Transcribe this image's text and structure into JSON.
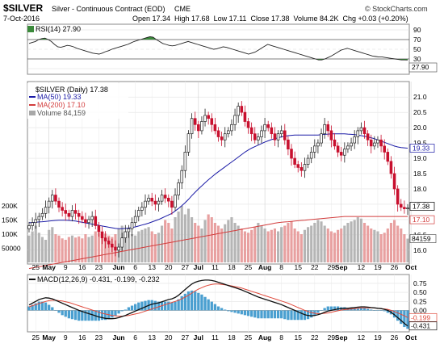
{
  "header": {
    "symbol": "$SILVER",
    "description": "Silver - Continuous Contract (EOD)",
    "exchange": "CME",
    "watermark": "© StockCharts.com",
    "date": "7-Oct-2016",
    "quote_line": "Open 17.34  High 17.68  Low 17.11  Close 17.38  Volume 84.2K  Chg +0.03 (+0.20%)"
  },
  "chart_data": [
    {
      "panel": "rsi",
      "type": "line",
      "legend": "RSI(14) 27.90",
      "ylim": [
        0,
        100
      ],
      "ticks": [
        10,
        30,
        50,
        70,
        90
      ],
      "reference_lines": [
        30,
        70
      ],
      "last_value_label": "27.90",
      "values": [
        62,
        64,
        66,
        70,
        72,
        73,
        70,
        66,
        60,
        55,
        54,
        56,
        58,
        57,
        55,
        52,
        50,
        48,
        46,
        44,
        42,
        41,
        40,
        42,
        45,
        47,
        50,
        52,
        54,
        56,
        58,
        60,
        63,
        66,
        68,
        70,
        72,
        74,
        76,
        75,
        70,
        66,
        62,
        60,
        58,
        57,
        58,
        60,
        62,
        64,
        66,
        64,
        62,
        60,
        58,
        56,
        54,
        52,
        50,
        51,
        53,
        55,
        54,
        52,
        50,
        48,
        46,
        44,
        42,
        40,
        42,
        44,
        48,
        52,
        56,
        60,
        58,
        56,
        54,
        52,
        50,
        48,
        46,
        44,
        42,
        40,
        38,
        36,
        34,
        32,
        30,
        28,
        28,
        30,
        33,
        36,
        40,
        44,
        48,
        50,
        52,
        50,
        48,
        46,
        44,
        42,
        40,
        38,
        36,
        35,
        34,
        34,
        33,
        32,
        31,
        30,
        29,
        28,
        28,
        27.9
      ]
    },
    {
      "panel": "price",
      "type": "candlestick",
      "legend_title": "$SILVER (Daily) 17.38",
      "series": [
        {
          "name": "MA(50) 19.33",
          "color": "#1a1aa6"
        },
        {
          "name": "MA(200) 17.10",
          "color": "#d23c3c"
        },
        {
          "name": "Volume 84,159",
          "color": "#a8a8a8"
        }
      ],
      "ylim": [
        15.6,
        21.4
      ],
      "y_ticks": [
        16.0,
        16.5,
        17.0,
        17.5,
        18.0,
        18.5,
        19.0,
        19.5,
        20.0,
        20.5,
        21.0
      ],
      "price_markers": [
        "19.33",
        "17.38",
        "17.10"
      ],
      "volume_ticks": [
        "200K",
        "150K",
        "100K",
        "50000"
      ],
      "volume_marker": "84159",
      "close": [
        16.8,
        16.9,
        17.0,
        17.1,
        17.2,
        17.4,
        17.6,
        17.8,
        17.6,
        17.4,
        17.3,
        17.2,
        17.1,
        17.3,
        17.2,
        17.1,
        17.0,
        16.9,
        17.0,
        17.1,
        16.8,
        16.6,
        16.4,
        16.3,
        16.2,
        16.1,
        16.0,
        16.1,
        16.4,
        16.6,
        16.7,
        16.9,
        17.1,
        17.3,
        17.4,
        17.6,
        17.7,
        17.6,
        17.5,
        17.6,
        17.8,
        17.7,
        17.6,
        17.4,
        17.8,
        18.2,
        18.6,
        19.2,
        19.8,
        20.3,
        20.1,
        19.9,
        20.2,
        20.4,
        20.3,
        20.1,
        19.9,
        19.7,
        19.6,
        19.8,
        19.9,
        20.1,
        20.4,
        20.7,
        20.5,
        20.2,
        20.0,
        19.8,
        19.6,
        19.7,
        19.9,
        20.1,
        20.0,
        19.8,
        19.6,
        19.8,
        19.9,
        19.6,
        19.3,
        19.0,
        18.8,
        18.7,
        18.6,
        18.8,
        19.0,
        19.2,
        19.4,
        19.5,
        19.8,
        20.1,
        19.9,
        19.6,
        19.4,
        19.2,
        19.1,
        19.3,
        19.4,
        19.5,
        19.7,
        19.9,
        20.0,
        19.8,
        19.6,
        19.4,
        19.5,
        19.6,
        19.4,
        19.2,
        18.9,
        18.5,
        18.0,
        17.5,
        17.4,
        17.35,
        17.38
      ],
      "ma50": [
        16.9,
        16.9,
        16.91,
        16.92,
        16.93,
        16.94,
        16.95,
        16.96,
        16.97,
        16.98,
        16.98,
        16.98,
        16.97,
        16.96,
        16.95,
        16.93,
        16.91,
        16.89,
        16.87,
        16.85,
        16.83,
        16.81,
        16.79,
        16.77,
        16.75,
        16.73,
        16.71,
        16.7,
        16.7,
        16.71,
        16.72,
        16.74,
        16.76,
        16.79,
        16.82,
        16.85,
        16.88,
        16.92,
        16.96,
        17.0,
        17.05,
        17.1,
        17.15,
        17.2,
        17.28,
        17.36,
        17.45,
        17.55,
        17.66,
        17.78,
        17.89,
        18.0,
        18.1,
        18.2,
        18.3,
        18.39,
        18.48,
        18.56,
        18.64,
        18.72,
        18.8,
        18.88,
        18.96,
        19.04,
        19.12,
        19.2,
        19.27,
        19.33,
        19.38,
        19.43,
        19.48,
        19.53,
        19.57,
        19.61,
        19.64,
        19.67,
        19.7,
        19.72,
        19.74,
        19.75,
        19.76,
        19.76,
        19.76,
        19.76,
        19.76,
        19.76,
        19.76,
        19.76,
        19.77,
        19.78,
        19.79,
        19.8,
        19.8,
        19.8,
        19.8,
        19.8,
        19.79,
        19.78,
        19.77,
        19.76,
        19.74,
        19.72,
        19.7,
        19.67,
        19.64,
        19.6,
        19.56,
        19.52,
        19.48,
        19.44,
        19.4,
        19.37,
        19.35,
        19.34,
        19.33
      ],
      "ma200": [
        15.4,
        15.42,
        15.44,
        15.46,
        15.48,
        15.5,
        15.52,
        15.54,
        15.56,
        15.58,
        15.6,
        15.62,
        15.64,
        15.66,
        15.68,
        15.7,
        15.72,
        15.74,
        15.76,
        15.78,
        15.8,
        15.82,
        15.84,
        15.86,
        15.88,
        15.9,
        15.92,
        15.94,
        15.96,
        15.98,
        16.0,
        16.02,
        16.04,
        16.06,
        16.08,
        16.1,
        16.12,
        16.14,
        16.16,
        16.18,
        16.2,
        16.22,
        16.24,
        16.26,
        16.28,
        16.3,
        16.32,
        16.34,
        16.36,
        16.38,
        16.4,
        16.42,
        16.44,
        16.46,
        16.48,
        16.5,
        16.52,
        16.54,
        16.56,
        16.58,
        16.6,
        16.62,
        16.64,
        16.66,
        16.68,
        16.7,
        16.72,
        16.74,
        16.76,
        16.78,
        16.8,
        16.82,
        16.84,
        16.86,
        16.88,
        16.9,
        16.91,
        16.92,
        16.93,
        16.94,
        16.95,
        16.96,
        16.97,
        16.98,
        16.99,
        17.0,
        17.01,
        17.02,
        17.03,
        17.04,
        17.05,
        17.06,
        17.07,
        17.08,
        17.09,
        17.1,
        17.1,
        17.1,
        17.1,
        17.1,
        17.1,
        17.1,
        17.1,
        17.1,
        17.1,
        17.1,
        17.1,
        17.1,
        17.1,
        17.1,
        17.1,
        17.1,
        17.1,
        17.1,
        17.1
      ],
      "volume_k": [
        95,
        110,
        130,
        105,
        90,
        80,
        115,
        125,
        100,
        95,
        85,
        80,
        90,
        95,
        88,
        92,
        85,
        100,
        90,
        95,
        110,
        105,
        98,
        102,
        95,
        90,
        100,
        120,
        130,
        110,
        105,
        100,
        95,
        110,
        115,
        120,
        125,
        110,
        100,
        105,
        130,
        150,
        140,
        120,
        160,
        180,
        200,
        170,
        190,
        160,
        140,
        130,
        120,
        150,
        170,
        160,
        140,
        130,
        120,
        135,
        150,
        160,
        140,
        130,
        120,
        110,
        105,
        115,
        125,
        140,
        130,
        120,
        110,
        115,
        120,
        110,
        125,
        130,
        140,
        145,
        120,
        110,
        100,
        115,
        125,
        130,
        140,
        150,
        145,
        130,
        120,
        110,
        105,
        115,
        120,
        130,
        140,
        145,
        150,
        160,
        155,
        140,
        130,
        120,
        115,
        110,
        100,
        105,
        120,
        140,
        150,
        130,
        120,
        100,
        84.159
      ]
    },
    {
      "panel": "macd",
      "type": "line",
      "legend": "MACD(12,26,9) -0.431, -0.199, -0.232",
      "ylim": [
        -0.55,
        0.95
      ],
      "ticks": [
        "0.75",
        "0.50",
        "0.25",
        "0.00"
      ],
      "last_value_labels": [
        "-0.199",
        "-0.431"
      ],
      "macd": [
        0.15,
        0.2,
        0.25,
        0.3,
        0.33,
        0.35,
        0.34,
        0.32,
        0.28,
        0.24,
        0.2,
        0.16,
        0.12,
        0.08,
        0.04,
        0.0,
        -0.03,
        -0.06,
        -0.09,
        -0.12,
        -0.15,
        -0.18,
        -0.2,
        -0.22,
        -0.23,
        -0.23,
        -0.22,
        -0.2,
        -0.17,
        -0.14,
        -0.1,
        -0.06,
        -0.02,
        0.02,
        0.06,
        0.1,
        0.14,
        0.17,
        0.19,
        0.21,
        0.24,
        0.27,
        0.3,
        0.32,
        0.36,
        0.42,
        0.5,
        0.58,
        0.66,
        0.73,
        0.78,
        0.81,
        0.83,
        0.84,
        0.84,
        0.83,
        0.81,
        0.78,
        0.75,
        0.72,
        0.69,
        0.66,
        0.63,
        0.6,
        0.57,
        0.53,
        0.49,
        0.45,
        0.41,
        0.37,
        0.34,
        0.31,
        0.28,
        0.25,
        0.22,
        0.19,
        0.16,
        0.12,
        0.08,
        0.04,
        0.0,
        -0.04,
        -0.08,
        -0.12,
        -0.14,
        -0.15,
        -0.14,
        -0.12,
        -0.09,
        -0.05,
        -0.02,
        0.0,
        0.02,
        0.04,
        0.05,
        0.06,
        0.06,
        0.07,
        0.08,
        0.09,
        0.1,
        0.1,
        0.09,
        0.08,
        0.07,
        0.06,
        0.05,
        0.03,
        0.0,
        -0.05,
        -0.12,
        -0.2,
        -0.28,
        -0.36,
        -0.431
      ],
      "signal": [
        0.1,
        0.13,
        0.16,
        0.19,
        0.22,
        0.25,
        0.27,
        0.28,
        0.28,
        0.27,
        0.26,
        0.24,
        0.22,
        0.19,
        0.16,
        0.13,
        0.1,
        0.07,
        0.04,
        0.01,
        -0.02,
        -0.05,
        -0.08,
        -0.1,
        -0.12,
        -0.14,
        -0.15,
        -0.16,
        -0.16,
        -0.15,
        -0.14,
        -0.12,
        -0.1,
        -0.08,
        -0.05,
        -0.02,
        0.01,
        0.04,
        0.07,
        0.1,
        0.13,
        0.16,
        0.19,
        0.22,
        0.25,
        0.28,
        0.32,
        0.37,
        0.42,
        0.48,
        0.54,
        0.59,
        0.63,
        0.67,
        0.7,
        0.72,
        0.73,
        0.73,
        0.72,
        0.71,
        0.7,
        0.68,
        0.66,
        0.64,
        0.62,
        0.59,
        0.56,
        0.53,
        0.5,
        0.47,
        0.44,
        0.41,
        0.38,
        0.35,
        0.32,
        0.29,
        0.26,
        0.23,
        0.2,
        0.16,
        0.12,
        0.08,
        0.04,
        0.0,
        -0.03,
        -0.06,
        -0.08,
        -0.09,
        -0.09,
        -0.08,
        -0.07,
        -0.05,
        -0.03,
        -0.01,
        0.01,
        0.02,
        0.03,
        0.04,
        0.05,
        0.06,
        0.07,
        0.07,
        0.07,
        0.07,
        0.07,
        0.06,
        0.05,
        0.04,
        0.03,
        0.0,
        -0.03,
        -0.07,
        -0.11,
        -0.15,
        -0.199
      ]
    }
  ],
  "x_axis": {
    "labels": [
      {
        "text": "25",
        "i": 2
      },
      {
        "text": "May",
        "i": 6,
        "bold": true
      },
      {
        "text": "9",
        "i": 11
      },
      {
        "text": "16",
        "i": 16
      },
      {
        "text": "23",
        "i": 21
      },
      {
        "text": "Jun",
        "i": 27,
        "bold": true
      },
      {
        "text": "6",
        "i": 32
      },
      {
        "text": "13",
        "i": 37
      },
      {
        "text": "20",
        "i": 42
      },
      {
        "text": "27",
        "i": 47
      },
      {
        "text": "Jul",
        "i": 51,
        "bold": true
      },
      {
        "text": "11",
        "i": 56
      },
      {
        "text": "18",
        "i": 61
      },
      {
        "text": "25",
        "i": 66
      },
      {
        "text": "Aug",
        "i": 71,
        "bold": true
      },
      {
        "text": "8",
        "i": 76
      },
      {
        "text": "15",
        "i": 81
      },
      {
        "text": "22",
        "i": 86
      },
      {
        "text": "29",
        "i": 91
      },
      {
        "text": "Sep",
        "i": 94,
        "bold": true
      },
      {
        "text": "12",
        "i": 100
      },
      {
        "text": "19",
        "i": 105
      },
      {
        "text": "26",
        "i": 110
      },
      {
        "text": "Oct",
        "i": 115,
        "bold": true
      }
    ]
  }
}
